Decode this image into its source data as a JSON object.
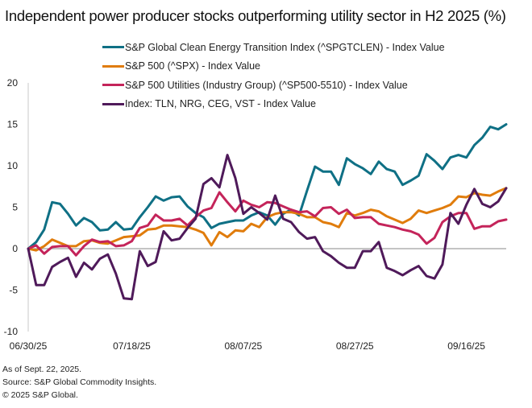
{
  "title": "Independent power producer stocks outperforming utility sector in H2 2025 (%)",
  "footer": {
    "line1": "As of Sept. 22, 2025.",
    "line2": "Source: S&P Global Commodity Insights.",
    "line3": "© 2025 S&P Global."
  },
  "chart_data": {
    "type": "line",
    "title": "Independent power producer stocks outperforming utility sector in H2 2025 (%)",
    "xlabel": "",
    "ylabel": "",
    "ylim": [
      -10,
      20
    ],
    "yticks": [
      20,
      15,
      10,
      5,
      0,
      -5,
      -10
    ],
    "xtick_labels": [
      "06/30/25",
      "07/18/25",
      "08/07/25",
      "08/27/25",
      "09/16/25"
    ],
    "xtick_index": [
      0,
      13,
      27,
      41,
      55
    ],
    "legend_position": "top",
    "grid": false,
    "series": [
      {
        "name": "S&P Global Clean Energy Transition Index (^SPGTCLEN) - Index Value",
        "color": "#0f7085",
        "values": [
          0,
          0.8,
          2.3,
          5.6,
          5.4,
          4.2,
          2.8,
          3.7,
          3.2,
          2.2,
          2.3,
          3.2,
          2.3,
          2.4,
          3.8,
          5.0,
          6.3,
          5.8,
          6.2,
          6.3,
          5.1,
          4.3,
          3.8,
          2.5,
          3.0,
          3.2,
          3.4,
          3.4,
          4.0,
          4.4,
          4.0,
          2.9,
          4.2,
          4.7,
          4.0,
          7.0,
          9.9,
          9.3,
          9.3,
          7.7,
          10.9,
          10.2,
          9.7,
          9.0,
          10.5,
          9.6,
          9.3,
          7.7,
          8.2,
          8.8,
          11.4,
          10.6,
          9.6,
          11.0,
          11.3,
          11.0,
          12.5,
          13.4,
          14.7,
          14.4,
          15.0
        ]
      },
      {
        "name": "S&P 500 (^SPX) - Index Value",
        "color": "#e07c0c",
        "values": [
          0,
          -0.2,
          0.3,
          1.1,
          0.7,
          0.3,
          0.3,
          0.9,
          1.0,
          0.7,
          0.6,
          1.0,
          1.4,
          1.5,
          1.6,
          2.3,
          2.4,
          2.8,
          2.8,
          2.7,
          2.6,
          2.3,
          1.9,
          0.4,
          2.0,
          1.4,
          2.2,
          2.1,
          3.0,
          2.6,
          3.8,
          4.2,
          4.4,
          4.4,
          4.2,
          3.8,
          3.8,
          3.2,
          3.0,
          2.6,
          4.3,
          4.0,
          4.3,
          4.7,
          4.5,
          3.9,
          3.5,
          3.1,
          3.6,
          4.6,
          4.3,
          4.6,
          4.9,
          5.3,
          6.3,
          6.2,
          6.7,
          6.5,
          6.4,
          6.9,
          7.3
        ]
      },
      {
        "name": "S&P 500 Utilities (Industry Group) (^SP500-5510) - Index Value",
        "color": "#c4245a",
        "values": [
          0,
          0.4,
          -0.6,
          0.2,
          0.3,
          0.3,
          -0.8,
          0.3,
          1.1,
          0.8,
          0.9,
          0.3,
          0.4,
          0.9,
          2.5,
          2.8,
          4.1,
          3.4,
          3.4,
          3.6,
          2.8,
          3.8,
          4.6,
          4.9,
          6.8,
          5.6,
          4.5,
          5.8,
          5.3,
          5.0,
          5.6,
          5.5,
          5.1,
          4.7,
          4.4,
          4.5,
          3.9,
          4.9,
          5.0,
          4.2,
          4.7,
          3.7,
          3.8,
          3.8,
          3.0,
          2.8,
          2.6,
          2.3,
          2.1,
          1.7,
          0.6,
          1.3,
          3.2,
          3.9,
          4.3,
          4.3,
          2.4,
          2.7,
          2.7,
          3.3,
          3.5
        ]
      },
      {
        "name": "Index: TLN, NRG, CEG, VST - Index Value",
        "color": "#4f1a5a",
        "values": [
          0,
          -4.4,
          -4.4,
          -2.2,
          -1.6,
          -1.1,
          -3.4,
          -1.7,
          -2.5,
          -1.2,
          -0.7,
          -3.0,
          -6.0,
          -6.1,
          -0.3,
          -2.1,
          -1.6,
          2.1,
          1.0,
          1.2,
          2.5,
          3.6,
          7.8,
          8.5,
          7.4,
          11.3,
          8.5,
          4.2,
          5.0,
          4.3,
          3.5,
          6.4,
          3.6,
          3.2,
          2.0,
          1.2,
          1.4,
          -0.3,
          -0.9,
          -1.7,
          -2.3,
          -2.3,
          -0.3,
          -0.3,
          0.8,
          -2.3,
          -2.7,
          -3.2,
          -2.6,
          -2.1,
          -3.3,
          -3.6,
          -1.9,
          4.3,
          3.0,
          5.3,
          7.2,
          5.4,
          5.0,
          5.7,
          7.3
        ]
      }
    ]
  }
}
